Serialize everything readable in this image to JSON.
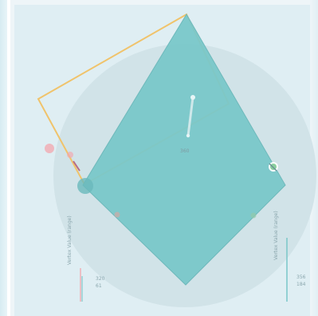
{
  "gizmo": {
    "center_readout": "360",
    "legend_left": {
      "title": "Vertex Value (range)",
      "max": "320",
      "min": "61"
    },
    "legend_right": {
      "title": "Vertex Value (range)",
      "max": "356",
      "min": "184"
    }
  },
  "colors": {
    "accent_teal": "#79c7c9",
    "outline_orange": "#f0c36b",
    "handle_pink": "#f3a6ad",
    "handle_green": "#77c78d",
    "circle_fill": "#cfe1e7"
  },
  "icons": {
    "rotation": "arrow-icon",
    "left_handle": "pink-dot-icon",
    "right_handle": "green-dot-icon"
  }
}
